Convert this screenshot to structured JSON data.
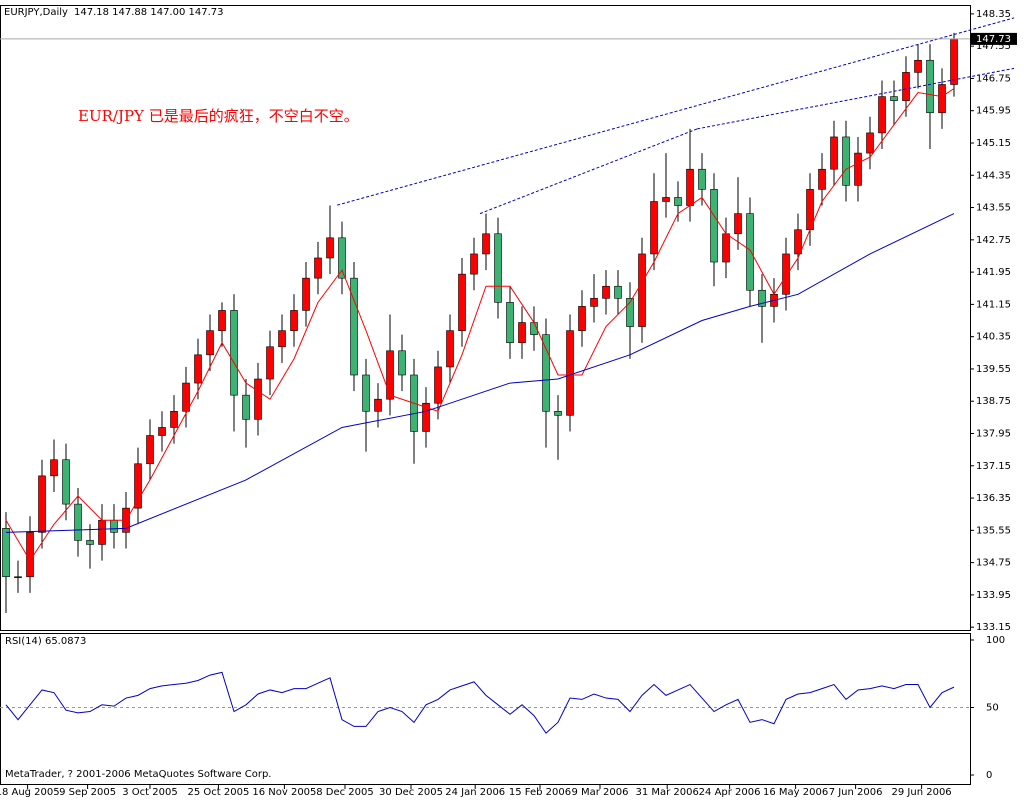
{
  "chart_data": {
    "type": "candlestick",
    "symbol": "EURJPY,Daily",
    "header_values": "147.18 147.88 147.00 147.73",
    "annotation": "EUR/JPY 已是最后的疯狂，不空白不空。",
    "footer": "MetaTrader, ? 2001-2006 MetaQuotes Software Corp.",
    "up_color": "#ff0000",
    "down_color": "#3cb371",
    "ylim": [
      133.08,
      148.57
    ],
    "yticks": [
      133.15,
      133.95,
      134.75,
      135.55,
      136.35,
      137.15,
      137.95,
      138.75,
      139.55,
      140.35,
      141.15,
      141.95,
      142.75,
      143.55,
      144.35,
      145.15,
      145.95,
      146.75,
      147.55,
      148.35
    ],
    "xlim": [
      -0.5,
      80.5
    ],
    "xticks": [
      {
        "value": 1.8,
        "label": "18 Aug 2005"
      },
      {
        "value": 6.8,
        "label": "9 Sep 2005"
      },
      {
        "value": 12,
        "label": "3 Oct 2005"
      },
      {
        "value": 17.7,
        "label": "25 Oct 2005"
      },
      {
        "value": 23.2,
        "label": "16 Nov 2005"
      },
      {
        "value": 28.25,
        "label": "8 Dec 2005"
      },
      {
        "value": 33.75,
        "label": "30 Dec 2005"
      },
      {
        "value": 39.1,
        "label": "24 Jan 2006"
      },
      {
        "value": 44.5,
        "label": "15 Feb 2006"
      },
      {
        "value": 49.5,
        "label": "9 Mar 2006"
      },
      {
        "value": 55.1,
        "label": "31 Mar 2006"
      },
      {
        "value": 60.3,
        "label": "24 Apr 2006"
      },
      {
        "value": 65.8,
        "label": "16 May 2006"
      },
      {
        "value": 70.8,
        "label": "7 Jun 2006"
      },
      {
        "value": 76.3,
        "label": "29 Jun 2006"
      }
    ],
    "ohlc": {
      "open": [
        135.6,
        134.4,
        134.4,
        135.5,
        136.9,
        137.3,
        136.2,
        135.3,
        135.2,
        135.8,
        135.5,
        136.1,
        137.2,
        137.9,
        138.1,
        138.5,
        139.2,
        139.9,
        140.5,
        141.0,
        138.9,
        138.3,
        139.3,
        140.1,
        140.5,
        141.0,
        141.8,
        142.3,
        142.8,
        141.8,
        139.4,
        138.5,
        138.8,
        140.0,
        139.4,
        138.0,
        138.7,
        139.6,
        140.5,
        141.9,
        142.4,
        142.9,
        141.2,
        140.2,
        140.7,
        140.4,
        138.5,
        138.4,
        140.5,
        141.1,
        141.3,
        141.6,
        141.3,
        140.6,
        142.4,
        143.7,
        143.8,
        143.6,
        144.5,
        144.0,
        142.2,
        142.9,
        143.4,
        141.5,
        141.1,
        141.4,
        142.4,
        143.0,
        144.0,
        144.5,
        145.3,
        144.1,
        144.9,
        145.4,
        146.3,
        146.2,
        146.9,
        147.2,
        145.9,
        146.6
      ],
      "high": [
        136.0,
        134.8,
        135.9,
        137.3,
        137.8,
        137.7,
        136.6,
        135.7,
        136.2,
        136.2,
        136.5,
        137.6,
        138.3,
        138.5,
        138.9,
        139.6,
        140.3,
        140.9,
        141.2,
        141.4,
        139.3,
        139.7,
        140.5,
        140.9,
        141.4,
        142.2,
        142.7,
        143.6,
        143.2,
        142.2,
        139.8,
        139.2,
        140.9,
        140.4,
        139.8,
        139.1,
        140.0,
        140.9,
        142.3,
        142.8,
        143.4,
        143.3,
        141.6,
        141.1,
        141.1,
        140.8,
        138.9,
        140.9,
        141.5,
        141.9,
        142.0,
        142.0,
        141.7,
        142.8,
        144.4,
        144.9,
        144.2,
        145.5,
        144.9,
        144.4,
        143.3,
        144.3,
        143.8,
        141.9,
        141.8,
        142.8,
        143.4,
        144.4,
        144.9,
        145.7,
        145.7,
        145.3,
        145.8,
        146.7,
        146.7,
        147.3,
        147.6,
        147.6,
        147.0,
        147.88
      ],
      "low": [
        133.5,
        134.0,
        134.0,
        135.1,
        136.5,
        135.8,
        134.9,
        134.6,
        134.8,
        135.1,
        135.1,
        135.7,
        136.8,
        137.5,
        137.7,
        138.1,
        138.8,
        139.5,
        140.1,
        138.0,
        137.6,
        137.9,
        138.9,
        139.7,
        140.1,
        140.6,
        141.4,
        141.9,
        141.4,
        139.0,
        137.5,
        138.1,
        138.4,
        139.0,
        137.2,
        137.6,
        138.3,
        139.2,
        140.1,
        141.5,
        142.0,
        140.8,
        139.8,
        139.8,
        140.0,
        137.6,
        137.3,
        138.0,
        140.1,
        140.7,
        140.9,
        140.9,
        139.8,
        140.2,
        142.0,
        143.3,
        143.2,
        143.2,
        143.6,
        141.6,
        141.8,
        142.5,
        141.1,
        140.2,
        140.7,
        141.0,
        142.0,
        142.6,
        143.6,
        144.1,
        143.7,
        143.7,
        144.5,
        145.0,
        145.6,
        145.8,
        146.5,
        145.0,
        145.5,
        146.3
      ],
      "close": [
        134.4,
        134.4,
        135.5,
        136.9,
        137.3,
        136.2,
        135.3,
        135.2,
        135.8,
        135.5,
        136.1,
        137.2,
        137.9,
        138.1,
        138.5,
        139.2,
        139.9,
        140.5,
        141.0,
        138.9,
        138.3,
        139.3,
        140.1,
        140.5,
        141.0,
        141.8,
        142.3,
        142.8,
        141.8,
        139.4,
        138.5,
        138.8,
        140.0,
        139.4,
        138.0,
        138.7,
        139.6,
        140.5,
        141.9,
        142.4,
        142.9,
        141.2,
        140.2,
        140.7,
        140.4,
        138.5,
        138.4,
        140.5,
        141.1,
        141.3,
        141.6,
        141.3,
        140.6,
        142.4,
        143.7,
        143.8,
        143.6,
        144.5,
        144.0,
        142.2,
        142.9,
        143.4,
        141.5,
        141.1,
        141.4,
        142.4,
        143.0,
        144.0,
        144.5,
        145.3,
        144.1,
        144.9,
        145.4,
        146.3,
        146.2,
        146.9,
        147.2,
        145.9,
        146.6,
        147.73
      ]
    },
    "lines": [
      {
        "color": "#ff0000",
        "x": [
          0,
          2,
          4,
          6,
          8,
          10,
          12,
          14,
          16,
          18,
          20,
          22,
          24,
          26,
          28,
          30,
          32,
          34,
          36,
          38,
          40,
          42,
          44,
          46,
          48,
          50,
          52,
          54,
          56,
          58,
          60,
          62,
          64,
          66,
          68,
          70,
          72,
          74,
          76,
          78,
          79
        ],
        "values": [
          135.8,
          134.8,
          135.7,
          136.4,
          135.8,
          135.8,
          136.8,
          137.9,
          139.0,
          140.2,
          139.2,
          138.8,
          139.8,
          141.2,
          142.0,
          140.5,
          138.9,
          138.7,
          138.5,
          139.9,
          141.6,
          141.6,
          140.7,
          139.4,
          139.4,
          140.6,
          141.2,
          142.2,
          143.4,
          143.8,
          142.9,
          142.5,
          141.4,
          142.3,
          143.7,
          144.5,
          144.8,
          145.6,
          146.4,
          146.3,
          146.5
        ]
      },
      {
        "color": "#0000cc",
        "x": [
          0,
          10,
          20,
          28,
          35,
          42,
          46,
          52,
          58,
          62,
          66,
          72,
          79
        ],
        "values": [
          135.5,
          135.6,
          136.8,
          138.1,
          138.5,
          139.2,
          139.3,
          139.9,
          140.75,
          141.1,
          141.4,
          142.4,
          143.4
        ]
      }
    ],
    "trendlines": [
      {
        "x": [
          27.6,
          84
        ],
        "values": [
          143.61,
          148.25
        ]
      },
      {
        "x": [
          39.5,
          57.6
        ],
        "values": [
          143.4,
          145.5
        ]
      },
      {
        "x": [
          57.6,
          84
        ],
        "values": [
          145.5,
          147.0
        ]
      }
    ],
    "rsi": {
      "title": "RSI(14) 65.0873",
      "color": "#0000cc",
      "ylim": [
        0,
        100
      ],
      "yticks": [
        0,
        50,
        100
      ],
      "levels": [
        50
      ],
      "values": [
        52,
        41,
        52,
        63,
        61,
        48,
        46,
        47,
        52,
        51,
        57,
        59,
        64,
        66,
        67,
        68,
        70,
        74,
        76,
        47,
        52,
        60,
        63,
        61,
        64,
        64,
        68,
        72,
        41,
        36,
        36,
        47,
        50,
        47,
        39,
        52,
        56,
        63,
        66,
        69,
        59,
        52,
        45,
        52,
        44,
        31,
        39,
        57,
        56,
        60,
        57,
        56,
        47,
        59,
        67,
        59,
        63,
        67,
        57,
        47,
        52,
        56,
        39,
        41,
        38,
        56,
        60,
        61,
        64,
        67,
        56,
        63,
        64,
        66,
        64,
        67,
        67,
        50,
        61,
        65.0873
      ]
    }
  }
}
